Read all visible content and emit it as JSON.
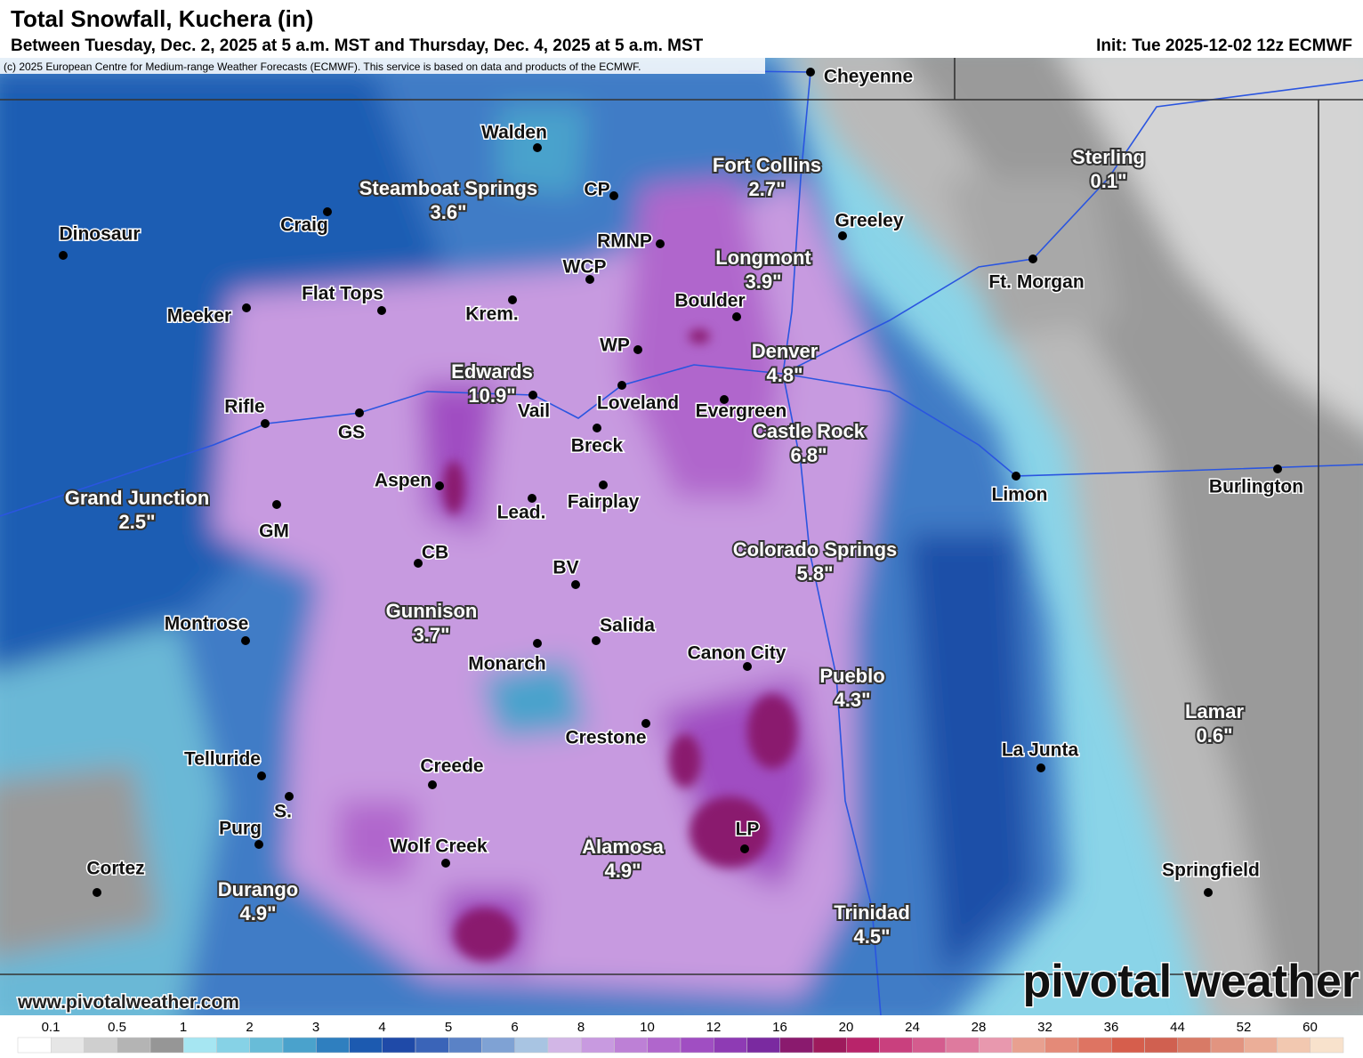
{
  "header": {
    "title": "Total Snowfall, Kuchera (in)",
    "subtitle": "Between Tuesday, Dec. 2, 2025 at 5 a.m. MST and Thursday, Dec. 4, 2025 at 5 a.m. MST",
    "init": "Init: Tue 2025-12-02 12z ECMWF",
    "copyright": "(c) 2025 European Centre for Medium-range Weather Forecasts (ECMWF). This service is based on data and products of the ECMWF."
  },
  "cities": [
    {
      "name": "Cheyenne"
    },
    {
      "name": "Walden"
    },
    {
      "name": "Steamboat Springs",
      "amount": "3.6\""
    },
    {
      "name": "Craig"
    },
    {
      "name": "CP"
    },
    {
      "name": "Fort Collins",
      "amount": "2.7\""
    },
    {
      "name": "Sterling",
      "amount": "0.1\""
    },
    {
      "name": "Greeley"
    },
    {
      "name": "Dinosaur"
    },
    {
      "name": "RMNP"
    },
    {
      "name": "Longmont",
      "amount": "3.9\""
    },
    {
      "name": "Ft. Morgan"
    },
    {
      "name": "WCP"
    },
    {
      "name": "Flat Tops"
    },
    {
      "name": "Krem."
    },
    {
      "name": "Meeker"
    },
    {
      "name": "Boulder"
    },
    {
      "name": "WP"
    },
    {
      "name": "Denver",
      "amount": "4.8\""
    },
    {
      "name": "Edwards",
      "amount": "10.9\""
    },
    {
      "name": "Vail"
    },
    {
      "name": "Loveland"
    },
    {
      "name": "Evergreen"
    },
    {
      "name": "Rifle"
    },
    {
      "name": "GS"
    },
    {
      "name": "Castle Rock",
      "amount": "6.8\""
    },
    {
      "name": "Breck"
    },
    {
      "name": "Limon"
    },
    {
      "name": "Burlington"
    },
    {
      "name": "Aspen"
    },
    {
      "name": "Fairplay"
    },
    {
      "name": "Grand Junction",
      "amount": "2.5\""
    },
    {
      "name": "Lead."
    },
    {
      "name": "GM"
    },
    {
      "name": "CB"
    },
    {
      "name": "Colorado Springs",
      "amount": "5.8\""
    },
    {
      "name": "BV"
    },
    {
      "name": "Gunnison",
      "amount": "3.7\""
    },
    {
      "name": "Montrose"
    },
    {
      "name": "Salida"
    },
    {
      "name": "Monarch"
    },
    {
      "name": "Canon City"
    },
    {
      "name": "Pueblo",
      "amount": "4.3\""
    },
    {
      "name": "Lamar",
      "amount": "0.6\""
    },
    {
      "name": "Crestone"
    },
    {
      "name": "La Junta"
    },
    {
      "name": "Telluride"
    },
    {
      "name": "Creede"
    },
    {
      "name": "S."
    },
    {
      "name": "Purg"
    },
    {
      "name": "LP"
    },
    {
      "name": "Wolf Creek"
    },
    {
      "name": "Alamosa",
      "amount": "4.9\""
    },
    {
      "name": "Cortez"
    },
    {
      "name": "Springfield"
    },
    {
      "name": "Durango",
      "amount": "4.9\""
    },
    {
      "name": "Trinidad",
      "amount": "4.5\""
    }
  ],
  "footer": {
    "website": "www.pivotalweather.com",
    "brand": "pivotal weather"
  },
  "legend": {
    "ticks": [
      0.1,
      0.5,
      1,
      2,
      3,
      4,
      5,
      6,
      8,
      10,
      12,
      16,
      20,
      24,
      28,
      32,
      36,
      44,
      52,
      60
    ]
  }
}
